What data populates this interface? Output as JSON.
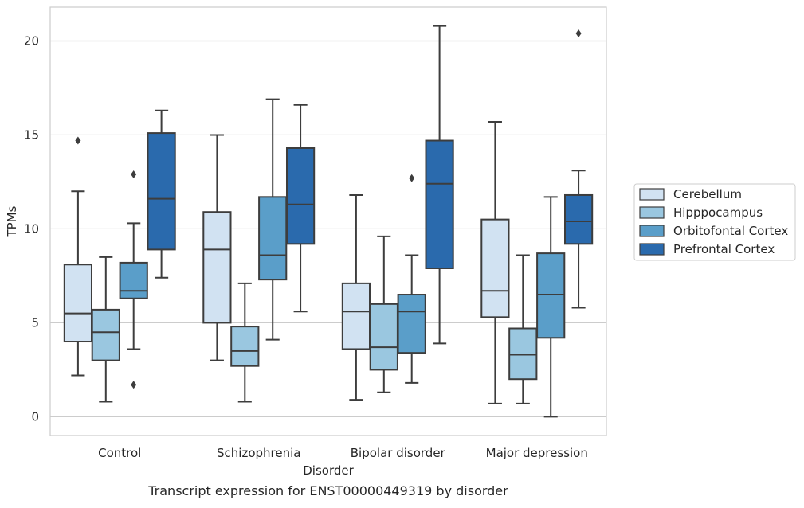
{
  "chart_data": {
    "type": "box",
    "title": "",
    "caption": "Transcript expression for ENST00000449319 by disorder",
    "xlabel": "Disorder",
    "ylabel": "TPMs",
    "ylim": [
      -1,
      21.8
    ],
    "yticks": [
      0,
      5,
      10,
      15,
      20
    ],
    "grid": "horizontal",
    "legend_position": "right",
    "categories": [
      "Control",
      "Schizophrenia",
      "Bipolar disorder",
      "Major depression"
    ],
    "series": [
      {
        "name": "Cerebellum",
        "color": "#d1e2f2",
        "boxes": [
          {
            "whisker_low": 2.2,
            "q1": 4.0,
            "median": 5.5,
            "q3": 8.1,
            "whisker_high": 12.0,
            "outliers": [
              14.7
            ]
          },
          {
            "whisker_low": 3.0,
            "q1": 5.0,
            "median": 8.9,
            "q3": 10.9,
            "whisker_high": 15.0,
            "outliers": []
          },
          {
            "whisker_low": 0.9,
            "q1": 3.6,
            "median": 5.6,
            "q3": 7.1,
            "whisker_high": 11.8,
            "outliers": []
          },
          {
            "whisker_low": 0.7,
            "q1": 5.3,
            "median": 6.7,
            "q3": 10.5,
            "whisker_high": 15.7,
            "outliers": []
          }
        ]
      },
      {
        "name": "Hipppocampus",
        "color": "#9ac7e0",
        "boxes": [
          {
            "whisker_low": 0.8,
            "q1": 3.0,
            "median": 4.5,
            "q3": 5.7,
            "whisker_high": 8.5,
            "outliers": []
          },
          {
            "whisker_low": 0.8,
            "q1": 2.7,
            "median": 3.5,
            "q3": 4.8,
            "whisker_high": 7.1,
            "outliers": []
          },
          {
            "whisker_low": 1.3,
            "q1": 2.5,
            "median": 3.7,
            "q3": 6.0,
            "whisker_high": 9.6,
            "outliers": []
          },
          {
            "whisker_low": 0.7,
            "q1": 2.0,
            "median": 3.3,
            "q3": 4.7,
            "whisker_high": 8.6,
            "outliers": []
          }
        ]
      },
      {
        "name": "Orbitofontal Cortex",
        "color": "#5a9ec9",
        "boxes": [
          {
            "whisker_low": 3.6,
            "q1": 6.3,
            "median": 6.7,
            "q3": 8.2,
            "whisker_high": 10.3,
            "outliers": [
              12.9,
              1.7
            ]
          },
          {
            "whisker_low": 4.1,
            "q1": 7.3,
            "median": 8.6,
            "q3": 11.7,
            "whisker_high": 16.9,
            "outliers": []
          },
          {
            "whisker_low": 1.8,
            "q1": 3.4,
            "median": 5.6,
            "q3": 6.5,
            "whisker_high": 8.6,
            "outliers": [
              12.7
            ]
          },
          {
            "whisker_low": 0.0,
            "q1": 4.2,
            "median": 6.5,
            "q3": 8.7,
            "whisker_high": 11.7,
            "outliers": []
          }
        ]
      },
      {
        "name": "Prefrontal Cortex",
        "color": "#2a6aad",
        "boxes": [
          {
            "whisker_low": 7.4,
            "q1": 8.9,
            "median": 11.6,
            "q3": 15.1,
            "whisker_high": 16.3,
            "outliers": []
          },
          {
            "whisker_low": 5.6,
            "q1": 9.2,
            "median": 11.3,
            "q3": 14.3,
            "whisker_high": 16.6,
            "outliers": []
          },
          {
            "whisker_low": 3.9,
            "q1": 7.9,
            "median": 12.4,
            "q3": 14.7,
            "whisker_high": 20.8,
            "outliers": []
          },
          {
            "whisker_low": 5.8,
            "q1": 9.2,
            "median": 10.4,
            "q3": 11.8,
            "whisker_high": 13.1,
            "outliers": [
              20.4
            ]
          }
        ]
      }
    ]
  }
}
